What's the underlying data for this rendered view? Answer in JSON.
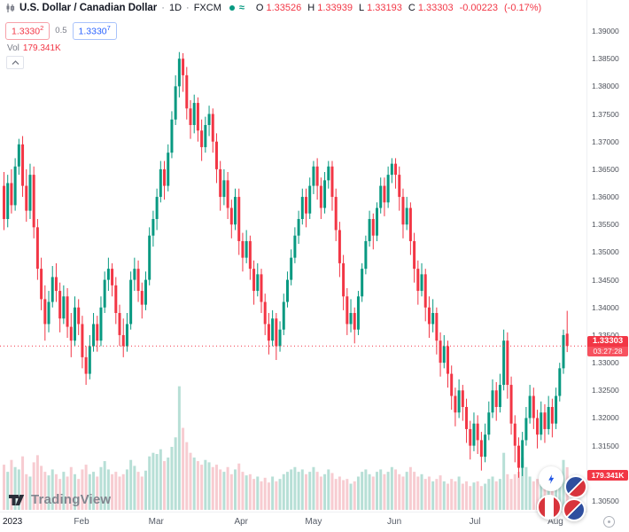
{
  "header": {
    "title": "U.S. Dollar / Canadian Dollar",
    "sep": "·",
    "interval": "1D",
    "exchange": "FXCM",
    "approx": "≈",
    "ohlc": {
      "o_label": "O",
      "o": "1.33526",
      "h_label": "H",
      "h": "1.33939",
      "l_label": "L",
      "l": "1.33193",
      "c_label": "C",
      "c": "1.33303",
      "change": "-0.00223",
      "change_pct": "(-0.17%)"
    }
  },
  "quote": {
    "bid_main": "1.3330",
    "bid_sup": "2",
    "spread": "0.5",
    "ask_main": "1.3330",
    "ask_sup": "7"
  },
  "volume_row": {
    "label": "Vol",
    "value": "179.341K"
  },
  "logo": {
    "text": "TradingView"
  },
  "price_axis": {
    "labels": [
      "1.39000",
      "1.38500",
      "1.38000",
      "1.37500",
      "1.37000",
      "1.36500",
      "1.36000",
      "1.35500",
      "1.35000",
      "1.34500",
      "1.34000",
      "1.33500",
      "1.33000",
      "1.32500",
      "1.32000",
      "1.31500",
      "1.31000",
      "1.30500"
    ],
    "last_price": "1.33303",
    "countdown": "03:27:28",
    "volume_tag": "179.341K"
  },
  "chart_data": {
    "type": "candlestick",
    "title": "USDCAD · 1D · FXCM, Jan–Aug 2023",
    "y_axis": "price",
    "y_range": [
      1.305,
      1.39
    ],
    "grid": false,
    "up_color": "#089981",
    "down_color": "#f23645",
    "vol_up_color": "#b7dfd6",
    "vol_down_color": "#f7ccd1",
    "last_close": 1.33303,
    "month_ticks": [
      {
        "label": "2023",
        "index": 0
      },
      {
        "label": "Feb",
        "index": 21
      },
      {
        "label": "Mar",
        "index": 41
      },
      {
        "label": "Apr",
        "index": 64
      },
      {
        "label": "May",
        "index": 83
      },
      {
        "label": "Jun",
        "index": 105
      },
      {
        "label": "Jul",
        "index": 127
      },
      {
        "label": "Aug",
        "index": 148
      }
    ],
    "candles": [
      [
        1.362,
        1.3645,
        1.354,
        1.356
      ],
      [
        1.356,
        1.364,
        1.3545,
        1.3625
      ],
      [
        1.3625,
        1.365,
        1.357,
        1.3585
      ],
      [
        1.3585,
        1.367,
        1.3575,
        1.3655
      ],
      [
        1.3655,
        1.3705,
        1.364,
        1.3695
      ],
      [
        1.3695,
        1.371,
        1.36,
        1.362
      ],
      [
        1.362,
        1.365,
        1.3555,
        1.3575
      ],
      [
        1.3575,
        1.366,
        1.356,
        1.364
      ],
      [
        1.364,
        1.3655,
        1.3525,
        1.3545
      ],
      [
        1.3545,
        1.356,
        1.345,
        1.347
      ],
      [
        1.347,
        1.349,
        1.3395,
        1.3415
      ],
      [
        1.3415,
        1.344,
        1.334,
        1.337
      ],
      [
        1.337,
        1.343,
        1.3355,
        1.341
      ],
      [
        1.341,
        1.3475,
        1.34,
        1.3455
      ],
      [
        1.3455,
        1.348,
        1.341,
        1.343
      ],
      [
        1.343,
        1.3445,
        1.3355,
        1.338
      ],
      [
        1.338,
        1.344,
        1.337,
        1.342
      ],
      [
        1.342,
        1.3435,
        1.3345,
        1.3365
      ],
      [
        1.3365,
        1.339,
        1.331,
        1.334
      ],
      [
        1.334,
        1.342,
        1.333,
        1.34
      ],
      [
        1.34,
        1.3415,
        1.335,
        1.337
      ],
      [
        1.337,
        1.3385,
        1.329,
        1.331
      ],
      [
        1.331,
        1.333,
        1.326,
        1.328
      ],
      [
        1.328,
        1.335,
        1.327,
        1.333
      ],
      [
        1.333,
        1.339,
        1.332,
        1.337
      ],
      [
        1.337,
        1.3385,
        1.332,
        1.334
      ],
      [
        1.334,
        1.342,
        1.333,
        1.34
      ],
      [
        1.34,
        1.3465,
        1.339,
        1.345
      ],
      [
        1.345,
        1.349,
        1.343,
        1.347
      ],
      [
        1.347,
        1.348,
        1.342,
        1.344
      ],
      [
        1.344,
        1.3455,
        1.337,
        1.339
      ],
      [
        1.339,
        1.3405,
        1.333,
        1.335
      ],
      [
        1.335,
        1.338,
        1.331,
        1.333
      ],
      [
        1.333,
        1.339,
        1.332,
        1.337
      ],
      [
        1.337,
        1.3465,
        1.336,
        1.345
      ],
      [
        1.345,
        1.349,
        1.343,
        1.347
      ],
      [
        1.347,
        1.3485,
        1.341,
        1.343
      ],
      [
        1.343,
        1.3445,
        1.338,
        1.3405
      ],
      [
        1.3405,
        1.3465,
        1.3395,
        1.345
      ],
      [
        1.345,
        1.3545,
        1.344,
        1.353
      ],
      [
        1.353,
        1.3575,
        1.351,
        1.356
      ],
      [
        1.356,
        1.3615,
        1.354,
        1.36
      ],
      [
        1.36,
        1.3665,
        1.359,
        1.365
      ],
      [
        1.365,
        1.3665,
        1.3595,
        1.362
      ],
      [
        1.362,
        1.3695,
        1.361,
        1.368
      ],
      [
        1.368,
        1.3755,
        1.367,
        1.374
      ],
      [
        1.374,
        1.382,
        1.373,
        1.38
      ],
      [
        1.38,
        1.3862,
        1.378,
        1.385
      ],
      [
        1.385,
        1.386,
        1.379,
        1.382
      ],
      [
        1.382,
        1.3835,
        1.374,
        1.376
      ],
      [
        1.376,
        1.3775,
        1.3705,
        1.373
      ],
      [
        1.373,
        1.3785,
        1.3715,
        1.377
      ],
      [
        1.377,
        1.378,
        1.37,
        1.372
      ],
      [
        1.372,
        1.374,
        1.3665,
        1.369
      ],
      [
        1.369,
        1.3745,
        1.368,
        1.373
      ],
      [
        1.373,
        1.3765,
        1.371,
        1.375
      ],
      [
        1.375,
        1.376,
        1.368,
        1.37
      ],
      [
        1.37,
        1.3715,
        1.3625,
        1.365
      ],
      [
        1.365,
        1.3665,
        1.3575,
        1.36
      ],
      [
        1.36,
        1.365,
        1.3585,
        1.363
      ],
      [
        1.363,
        1.3645,
        1.356,
        1.358
      ],
      [
        1.358,
        1.3595,
        1.3525,
        1.355
      ],
      [
        1.355,
        1.3615,
        1.354,
        1.36
      ],
      [
        1.36,
        1.3615,
        1.3495,
        1.352
      ],
      [
        1.352,
        1.3535,
        1.3465,
        1.349
      ],
      [
        1.349,
        1.354,
        1.348,
        1.352
      ],
      [
        1.352,
        1.353,
        1.345,
        1.347
      ],
      [
        1.347,
        1.3485,
        1.3405,
        1.343
      ],
      [
        1.343,
        1.348,
        1.342,
        1.346
      ],
      [
        1.346,
        1.347,
        1.339,
        1.341
      ],
      [
        1.341,
        1.3425,
        1.335,
        1.337
      ],
      [
        1.337,
        1.339,
        1.3315,
        1.334
      ],
      [
        1.334,
        1.3395,
        1.333,
        1.338
      ],
      [
        1.338,
        1.339,
        1.3305,
        1.333
      ],
      [
        1.333,
        1.3375,
        1.332,
        1.336
      ],
      [
        1.336,
        1.3425,
        1.335,
        1.341
      ],
      [
        1.341,
        1.3465,
        1.34,
        1.345
      ],
      [
        1.345,
        1.3505,
        1.344,
        1.349
      ],
      [
        1.349,
        1.3545,
        1.348,
        1.353
      ],
      [
        1.353,
        1.3575,
        1.3515,
        1.356
      ],
      [
        1.356,
        1.3615,
        1.355,
        1.36
      ],
      [
        1.36,
        1.3615,
        1.3545,
        1.357
      ],
      [
        1.357,
        1.3635,
        1.356,
        1.362
      ],
      [
        1.362,
        1.3665,
        1.3605,
        1.3655
      ],
      [
        1.3655,
        1.367,
        1.3595,
        1.362
      ],
      [
        1.362,
        1.3635,
        1.356,
        1.358
      ],
      [
        1.358,
        1.3645,
        1.357,
        1.363
      ],
      [
        1.363,
        1.3665,
        1.3615,
        1.3655
      ],
      [
        1.3655,
        1.3665,
        1.3575,
        1.36
      ],
      [
        1.36,
        1.3615,
        1.352,
        1.354
      ],
      [
        1.354,
        1.3555,
        1.3455,
        1.348
      ],
      [
        1.348,
        1.3495,
        1.3395,
        1.342
      ],
      [
        1.342,
        1.3435,
        1.335,
        1.337
      ],
      [
        1.337,
        1.3415,
        1.3355,
        1.339
      ],
      [
        1.339,
        1.34,
        1.3335,
        1.336
      ],
      [
        1.336,
        1.343,
        1.335,
        1.342
      ],
      [
        1.342,
        1.348,
        1.341,
        1.347
      ],
      [
        1.347,
        1.353,
        1.346,
        1.352
      ],
      [
        1.352,
        1.3575,
        1.351,
        1.356
      ],
      [
        1.356,
        1.357,
        1.3505,
        1.353
      ],
      [
        1.353,
        1.359,
        1.352,
        1.358
      ],
      [
        1.358,
        1.3635,
        1.357,
        1.362
      ],
      [
        1.362,
        1.3635,
        1.3565,
        1.359
      ],
      [
        1.359,
        1.3655,
        1.358,
        1.364
      ],
      [
        1.364,
        1.367,
        1.3625,
        1.366
      ],
      [
        1.366,
        1.367,
        1.3615,
        1.364
      ],
      [
        1.364,
        1.3655,
        1.3575,
        1.36
      ],
      [
        1.36,
        1.3615,
        1.3525,
        1.355
      ],
      [
        1.355,
        1.36,
        1.354,
        1.358
      ],
      [
        1.358,
        1.359,
        1.3495,
        1.352
      ],
      [
        1.352,
        1.3535,
        1.3445,
        1.347
      ],
      [
        1.347,
        1.3485,
        1.3405,
        1.343
      ],
      [
        1.343,
        1.348,
        1.342,
        1.346
      ],
      [
        1.346,
        1.347,
        1.3375,
        1.34
      ],
      [
        1.34,
        1.342,
        1.3345,
        1.337
      ],
      [
        1.337,
        1.3415,
        1.3355,
        1.339
      ],
      [
        1.339,
        1.34,
        1.3315,
        1.334
      ],
      [
        1.334,
        1.3355,
        1.3275,
        1.33
      ],
      [
        1.33,
        1.335,
        1.329,
        1.333
      ],
      [
        1.333,
        1.334,
        1.3255,
        1.328
      ],
      [
        1.328,
        1.3295,
        1.3215,
        1.324
      ],
      [
        1.324,
        1.3255,
        1.3185,
        1.321
      ],
      [
        1.321,
        1.327,
        1.32,
        1.325
      ],
      [
        1.325,
        1.326,
        1.3195,
        1.322
      ],
      [
        1.322,
        1.3235,
        1.3155,
        1.318
      ],
      [
        1.318,
        1.3195,
        1.3125,
        1.315
      ],
      [
        1.315,
        1.321,
        1.314,
        1.319
      ],
      [
        1.319,
        1.3205,
        1.3135,
        1.316
      ],
      [
        1.316,
        1.3175,
        1.3105,
        1.313
      ],
      [
        1.313,
        1.319,
        1.312,
        1.317
      ],
      [
        1.317,
        1.323,
        1.316,
        1.321
      ],
      [
        1.321,
        1.327,
        1.32,
        1.325
      ],
      [
        1.325,
        1.3265,
        1.3195,
        1.322
      ],
      [
        1.322,
        1.328,
        1.321,
        1.326
      ],
      [
        1.326,
        1.336,
        1.325,
        1.334
      ],
      [
        1.334,
        1.3355,
        1.3235,
        1.326
      ],
      [
        1.326,
        1.3275,
        1.317,
        1.319
      ],
      [
        1.319,
        1.3205,
        1.312,
        1.315
      ],
      [
        1.315,
        1.3165,
        1.3092,
        1.311
      ],
      [
        1.311,
        1.3175,
        1.3095,
        1.316
      ],
      [
        1.316,
        1.322,
        1.315,
        1.32
      ],
      [
        1.32,
        1.326,
        1.319,
        1.324
      ],
      [
        1.324,
        1.3255,
        1.318,
        1.32
      ],
      [
        1.32,
        1.3215,
        1.3145,
        1.317
      ],
      [
        1.317,
        1.323,
        1.316,
        1.321
      ],
      [
        1.321,
        1.3225,
        1.3155,
        1.318
      ],
      [
        1.318,
        1.324,
        1.317,
        1.322
      ],
      [
        1.322,
        1.3235,
        1.3165,
        1.319
      ],
      [
        1.319,
        1.3255,
        1.318,
        1.324
      ],
      [
        1.324,
        1.33,
        1.323,
        1.329
      ],
      [
        1.329,
        1.336,
        1.328,
        1.335
      ],
      [
        1.33526,
        1.33939,
        1.33193,
        1.33303
      ]
    ],
    "volumes_k": [
      190,
      160,
      210,
      180,
      170,
      225,
      150,
      140,
      200,
      230,
      185,
      160,
      145,
      170,
      150,
      130,
      160,
      140,
      180,
      150,
      130,
      170,
      190,
      150,
      160,
      140,
      180,
      205,
      170,
      150,
      160,
      140,
      150,
      170,
      210,
      185,
      160,
      140,
      165,
      225,
      240,
      235,
      255,
      205,
      220,
      265,
      305,
      520,
      345,
      285,
      240,
      220,
      205,
      190,
      210,
      200,
      180,
      190,
      170,
      160,
      180,
      150,
      170,
      195,
      160,
      145,
      150,
      130,
      140,
      120,
      135,
      115,
      140,
      120,
      130,
      150,
      160,
      170,
      180,
      160,
      170,
      150,
      160,
      180,
      160,
      140,
      150,
      170,
      155,
      130,
      140,
      125,
      130,
      110,
      120,
      140,
      160,
      170,
      150,
      140,
      160,
      170,
      150,
      160,
      180,
      170,
      150,
      140,
      160,
      180,
      160,
      140,
      150,
      130,
      140,
      120,
      130,
      145,
      120,
      110,
      130,
      120,
      140,
      110,
      120,
      100,
      115,
      120,
      100,
      110,
      130,
      140,
      120,
      130,
      240,
      150,
      130,
      150,
      160,
      220,
      180,
      140,
      120,
      130,
      110,
      120,
      130,
      110,
      140,
      160,
      210,
      179.341
    ]
  }
}
